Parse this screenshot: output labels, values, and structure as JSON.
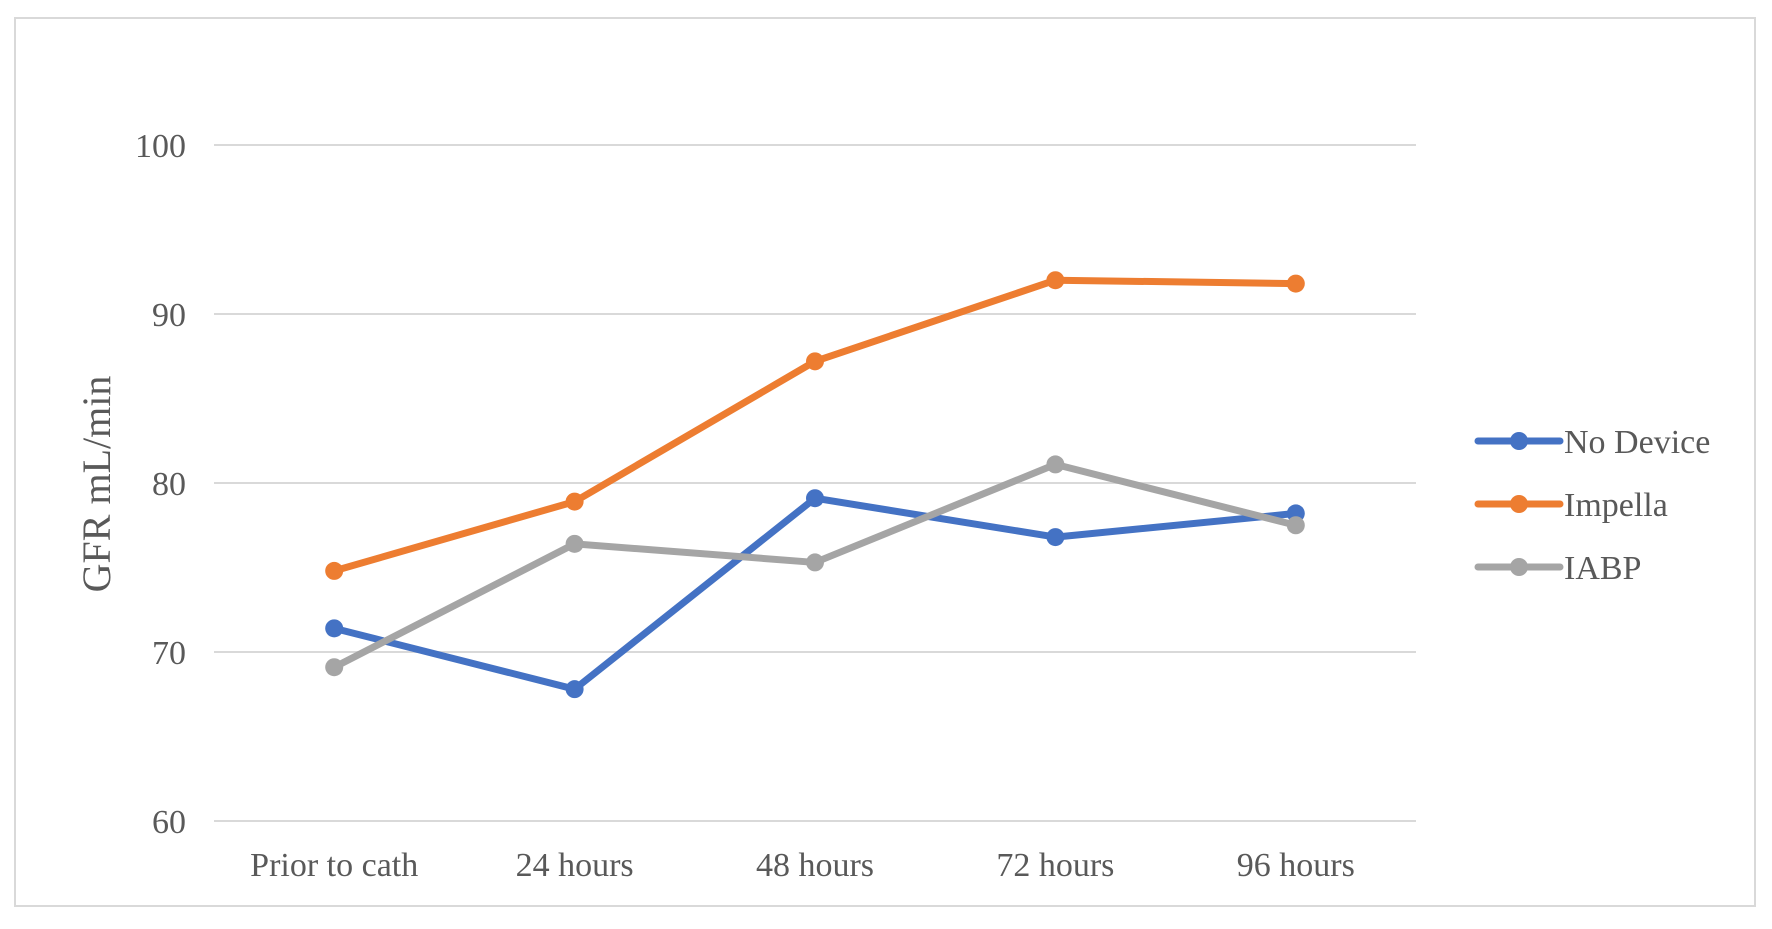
{
  "chart_data": {
    "type": "line",
    "title": "",
    "xlabel": "",
    "ylabel": "GFR mL/min",
    "ylim": [
      60,
      100
    ],
    "yticks": [
      60,
      70,
      80,
      90,
      100
    ],
    "grid": true,
    "legend_position": "right",
    "categories": [
      "Prior to cath",
      "24 hours",
      "48 hours",
      "72 hours",
      "96 hours"
    ],
    "series": [
      {
        "name": "No Device",
        "color": "#4472c4",
        "values": [
          71.4,
          67.8,
          79.1,
          76.8,
          78.2
        ]
      },
      {
        "name": "Impella",
        "color": "#ed7d31",
        "values": [
          74.8,
          78.9,
          87.2,
          92.0,
          91.8
        ]
      },
      {
        "name": "IABP",
        "color": "#a5a5a5",
        "values": [
          69.1,
          76.4,
          75.3,
          81.1,
          77.5
        ]
      }
    ]
  }
}
